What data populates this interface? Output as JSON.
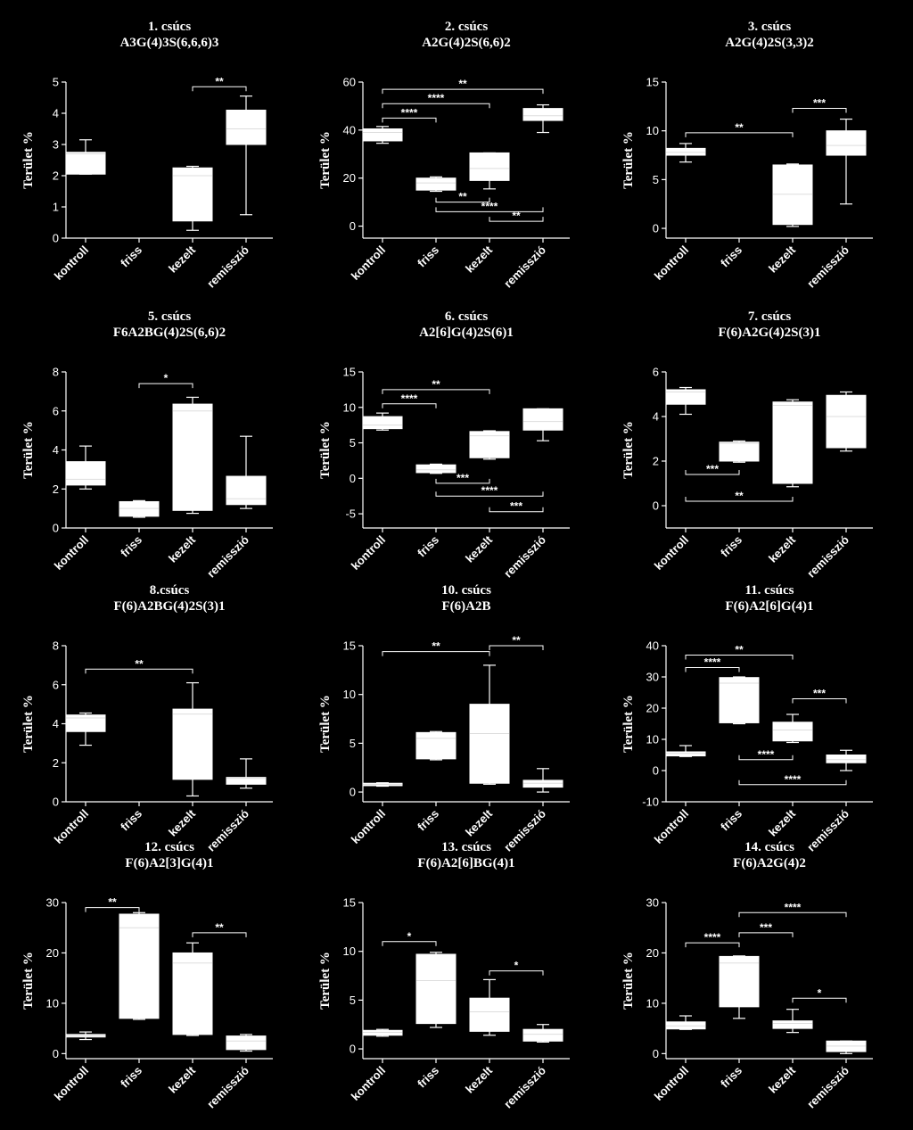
{
  "ylabel": "Terület %",
  "categories": [
    "kontroll",
    "friss",
    "kezelt",
    "remisszió"
  ],
  "chart_data": [
    {
      "type": "box",
      "title": "1. csúcs",
      "subtitle": "A3G(4)3S(6,6,6)3",
      "ylim": [
        0,
        5
      ],
      "ticks": [
        0,
        1,
        2,
        3,
        4,
        5
      ],
      "boxes": [
        [
          2.05,
          2.05,
          2.7,
          2.75,
          3.15
        ],
        null,
        [
          0.25,
          0.55,
          2.0,
          2.25,
          2.3
        ],
        [
          0.75,
          3.0,
          3.5,
          4.1,
          4.55
        ]
      ],
      "sig": [
        {
          "from": 2,
          "to": 3,
          "y": 4.85,
          "label": "**",
          "dir": "down"
        }
      ]
    },
    {
      "type": "box",
      "title": "2. csúcs",
      "subtitle": "A2G(4)2S(6,6)2",
      "ylim": [
        -5,
        60
      ],
      "ticks": [
        0,
        20,
        40,
        60
      ],
      "boxes": [
        [
          34.5,
          35.5,
          39,
          40.5,
          41.5
        ],
        [
          14.5,
          15.0,
          18,
          20.0,
          20.5
        ],
        [
          15.5,
          19.0,
          24,
          30.5,
          30.5
        ],
        [
          39,
          44.0,
          46,
          49.0,
          50.5
        ]
      ],
      "sig": [
        {
          "from": 0,
          "to": 1,
          "y": 45,
          "label": "****",
          "dir": "down"
        },
        {
          "from": 0,
          "to": 2,
          "y": 51,
          "label": "****",
          "dir": "down"
        },
        {
          "from": 0,
          "to": 3,
          "y": 57,
          "label": "**",
          "dir": "down"
        },
        {
          "from": 1,
          "to": 2,
          "y": 10,
          "label": "**",
          "dir": "up"
        },
        {
          "from": 1,
          "to": 3,
          "y": 6,
          "label": "****",
          "dir": "up"
        },
        {
          "from": 2,
          "to": 3,
          "y": 2,
          "label": "**",
          "dir": "up"
        }
      ]
    },
    {
      "type": "box",
      "title": "3. csúcs",
      "subtitle": "A2G(4)2S(3,3)2",
      "ylim": [
        -1,
        15
      ],
      "ticks": [
        0,
        5,
        10,
        15
      ],
      "boxes": [
        [
          6.8,
          7.5,
          7.8,
          8.2,
          8.7
        ],
        null,
        [
          0.2,
          0.4,
          3.5,
          6.5,
          6.6
        ],
        [
          2.5,
          7.5,
          8.5,
          10.0,
          11.2
        ]
      ],
      "sig": [
        {
          "from": 0,
          "to": 2,
          "y": 9.8,
          "label": "**",
          "dir": "down"
        },
        {
          "from": 2,
          "to": 3,
          "y": 12.3,
          "label": "***",
          "dir": "down"
        }
      ]
    },
    {
      "type": "box",
      "title": "5. csúcs",
      "subtitle": "F6A2BG(4)2S(6,6)2",
      "ylim": [
        0,
        8
      ],
      "ticks": [
        0,
        2,
        4,
        6,
        8
      ],
      "boxes": [
        [
          2.0,
          2.2,
          2.5,
          3.4,
          4.2
        ],
        [
          0.55,
          0.6,
          1.0,
          1.35,
          1.4
        ],
        [
          0.75,
          0.9,
          6.0,
          6.35,
          6.7
        ],
        [
          1.0,
          1.2,
          1.5,
          2.65,
          4.7
        ]
      ],
      "sig": [
        {
          "from": 1,
          "to": 2,
          "y": 7.4,
          "label": "*",
          "dir": "down"
        }
      ]
    },
    {
      "type": "box",
      "title": "6. csúcs",
      "subtitle": "A2[6]G(4)2S(6)1",
      "ylim": [
        -7,
        15
      ],
      "ticks": [
        -5,
        0,
        5,
        10,
        15
      ],
      "boxes": [
        [
          6.8,
          7.0,
          7.5,
          8.7,
          9.2
        ],
        [
          0.7,
          0.8,
          1.2,
          1.9,
          2.0
        ],
        [
          2.7,
          2.9,
          6.0,
          6.6,
          6.7
        ],
        [
          5.3,
          6.8,
          8.0,
          9.8,
          9.8
        ]
      ],
      "sig": [
        {
          "from": 0,
          "to": 1,
          "y": 10.5,
          "label": "****",
          "dir": "down"
        },
        {
          "from": 0,
          "to": 2,
          "y": 12.5,
          "label": "**",
          "dir": "down"
        },
        {
          "from": 1,
          "to": 2,
          "y": -0.7,
          "label": "***",
          "dir": "up"
        },
        {
          "from": 1,
          "to": 3,
          "y": -2.5,
          "label": "****",
          "dir": "up"
        },
        {
          "from": 2,
          "to": 3,
          "y": -4.7,
          "label": "***",
          "dir": "up"
        }
      ]
    },
    {
      "type": "box",
      "title": "7. csúcs",
      "subtitle": "F(6)A2G(4)2S(3)1",
      "ylim": [
        -1,
        6
      ],
      "ticks": [
        0,
        2,
        4,
        6
      ],
      "boxes": [
        [
          4.1,
          4.55,
          5.1,
          5.2,
          5.3
        ],
        [
          1.95,
          2.0,
          2.8,
          2.85,
          2.9
        ],
        [
          0.85,
          1.0,
          4.5,
          4.65,
          4.75
        ],
        [
          2.45,
          2.6,
          4.0,
          4.95,
          5.1
        ]
      ],
      "sig": [
        {
          "from": 0,
          "to": 1,
          "y": 1.4,
          "label": "***",
          "dir": "up"
        },
        {
          "from": 0,
          "to": 2,
          "y": 0.2,
          "label": "**",
          "dir": "up"
        }
      ]
    },
    {
      "type": "box",
      "title": "8.csúcs",
      "subtitle": "F(6)A2BG(4)2S(3)1",
      "ylim": [
        0,
        8
      ],
      "ticks": [
        0,
        2,
        4,
        6,
        8
      ],
      "boxes": [
        [
          2.9,
          3.6,
          4.3,
          4.45,
          4.55
        ],
        null,
        [
          0.3,
          1.15,
          4.5,
          4.75,
          6.1
        ],
        [
          0.7,
          0.9,
          1.2,
          1.25,
          2.2
        ]
      ],
      "sig": [
        {
          "from": 0,
          "to": 2,
          "y": 6.8,
          "label": "**",
          "dir": "down"
        }
      ]
    },
    {
      "type": "box",
      "title": "10. csúcs",
      "subtitle": "F(6)A2B",
      "ylim": [
        -1,
        15
      ],
      "ticks": [
        0,
        5,
        10,
        15
      ],
      "boxes": [
        [
          0.6,
          0.65,
          0.8,
          0.9,
          0.95
        ],
        [
          3.3,
          3.4,
          5.5,
          6.1,
          6.2
        ],
        [
          0.8,
          0.9,
          6.0,
          9.0,
          13.0
        ],
        [
          0.0,
          0.5,
          0.9,
          1.2,
          2.4
        ]
      ],
      "sig": [
        {
          "from": 0,
          "to": 2,
          "y": 14.4,
          "label": "**",
          "dir": "down"
        },
        {
          "from": 2,
          "to": 3,
          "y": 15.0,
          "label": "**",
          "dir": "down"
        }
      ]
    },
    {
      "type": "box",
      "title": "11. csúcs",
      "subtitle": "F(6)A2[6]G(4)1",
      "ylim": [
        -10,
        40
      ],
      "ticks": [
        -10,
        0,
        10,
        20,
        30,
        40
      ],
      "boxes": [
        [
          4.5,
          4.7,
          5.5,
          6.0,
          8.0
        ],
        [
          15.0,
          15.3,
          28.0,
          29.8,
          30.0
        ],
        [
          9.0,
          9.5,
          13.0,
          15.5,
          18.0
        ],
        [
          0.0,
          2.5,
          3.5,
          5.0,
          6.5
        ]
      ],
      "sig": [
        {
          "from": 0,
          "to": 1,
          "y": 33,
          "label": "****",
          "dir": "down"
        },
        {
          "from": 0,
          "to": 2,
          "y": 37,
          "label": "**",
          "dir": "down"
        },
        {
          "from": 2,
          "to": 3,
          "y": 23,
          "label": "***",
          "dir": "down"
        },
        {
          "from": 1,
          "to": 2,
          "y": 3.5,
          "label": "****",
          "dir": "up"
        },
        {
          "from": 1,
          "to": 3,
          "y": -4.5,
          "label": "****",
          "dir": "up"
        }
      ]
    },
    {
      "type": "box",
      "title": "12. csúcs",
      "subtitle": "F(6)A2[3]G(4)1",
      "ylim": [
        -1,
        30
      ],
      "ticks": [
        0,
        10,
        20,
        30
      ],
      "boxes": [
        [
          2.8,
          3.3,
          3.5,
          3.8,
          4.3
        ],
        [
          6.8,
          7.0,
          25.0,
          27.7,
          28.0
        ],
        [
          3.6,
          3.8,
          18.0,
          20.0,
          22.0
        ],
        [
          0.5,
          0.8,
          2.5,
          3.5,
          3.8
        ]
      ],
      "sig": [
        {
          "from": 0,
          "to": 1,
          "y": 29.0,
          "label": "**",
          "dir": "down"
        },
        {
          "from": 2,
          "to": 3,
          "y": 24.0,
          "label": "**",
          "dir": "down"
        }
      ]
    },
    {
      "type": "box",
      "title": "13. csúcs",
      "subtitle": "F(6)A2[6]BG(4)1",
      "ylim": [
        -1,
        15
      ],
      "ticks": [
        0,
        5,
        10,
        15
      ],
      "boxes": [
        [
          1.3,
          1.4,
          1.7,
          1.9,
          2.0
        ],
        [
          2.2,
          2.6,
          7.0,
          9.7,
          9.9
        ],
        [
          1.4,
          1.8,
          3.8,
          5.2,
          7.1
        ],
        [
          0.7,
          0.8,
          1.5,
          2.0,
          2.5
        ]
      ],
      "sig": [
        {
          "from": 0,
          "to": 1,
          "y": 11.0,
          "label": "*",
          "dir": "down"
        },
        {
          "from": 2,
          "to": 3,
          "y": 8.0,
          "label": "*",
          "dir": "down"
        }
      ]
    },
    {
      "type": "box",
      "title": "14. csúcs",
      "subtitle": "F(6)A2G(4)2",
      "ylim": [
        -1,
        30
      ],
      "ticks": [
        0,
        10,
        20,
        30
      ],
      "boxes": [
        [
          4.8,
          4.9,
          5.5,
          6.3,
          7.5
        ],
        [
          7.0,
          9.3,
          18.0,
          19.3,
          19.4
        ],
        [
          4.2,
          5.0,
          6.0,
          6.5,
          8.8
        ],
        [
          0.0,
          0.4,
          1.5,
          2.5,
          2.5
        ]
      ],
      "sig": [
        {
          "from": 0,
          "to": 1,
          "y": 22.0,
          "label": "****",
          "dir": "down"
        },
        {
          "from": 1,
          "to": 2,
          "y": 24.0,
          "label": "***",
          "dir": "down"
        },
        {
          "from": 1,
          "to": 3,
          "y": 28.0,
          "label": "****",
          "dir": "down"
        },
        {
          "from": 2,
          "to": 3,
          "y": 11.0,
          "label": "*",
          "dir": "down"
        }
      ]
    }
  ]
}
